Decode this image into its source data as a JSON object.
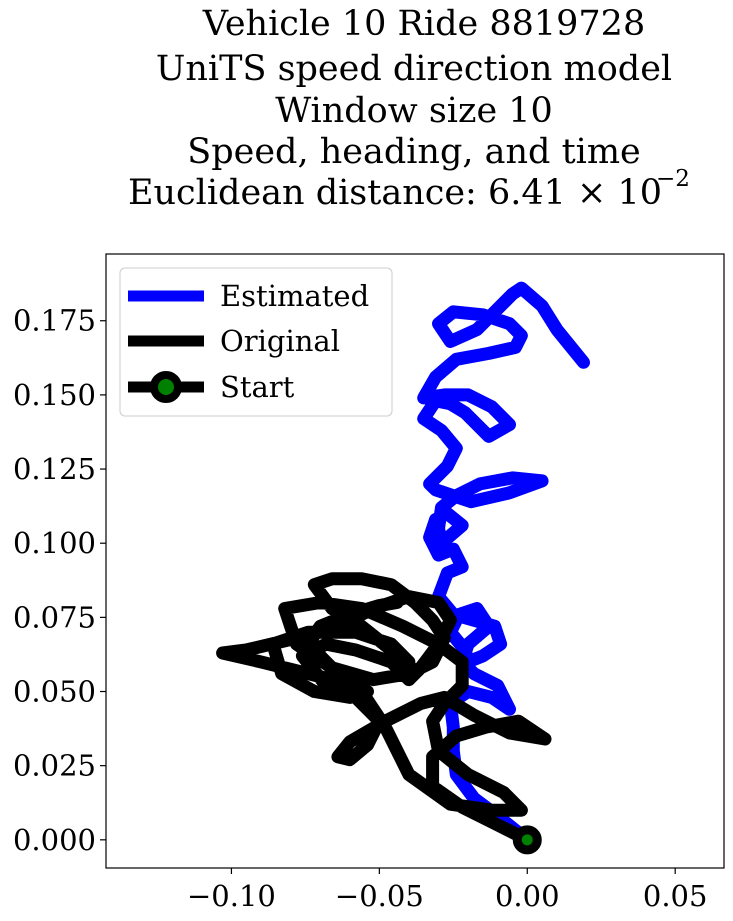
{
  "chart_data": {
    "type": "line",
    "title_lines": [
      "Vehicle 10 Ride 8819728",
      "UniTS speed direction model",
      "Window size 10",
      "Speed, heading, and time",
      "Euclidean distance: 6.41 × 10"
    ],
    "title_exponent": "−2",
    "xlim": [
      -0.1424,
      0.0665
    ],
    "ylim": [
      -0.0095,
      0.1975
    ],
    "x_ticks": [
      {
        "value": -0.1,
        "label": "−0.10"
      },
      {
        "value": -0.05,
        "label": "−0.05"
      },
      {
        "value": 0.0,
        "label": "0.00"
      },
      {
        "value": 0.05,
        "label": "0.05"
      }
    ],
    "y_ticks": [
      {
        "value": 0.0,
        "label": "0.000"
      },
      {
        "value": 0.025,
        "label": "0.025"
      },
      {
        "value": 0.05,
        "label": "0.050"
      },
      {
        "value": 0.075,
        "label": "0.075"
      },
      {
        "value": 0.1,
        "label": "0.100"
      },
      {
        "value": 0.125,
        "label": "0.125"
      },
      {
        "value": 0.15,
        "label": "0.150"
      },
      {
        "value": 0.175,
        "label": "0.175"
      }
    ],
    "legend_position": "top-left",
    "series": [
      {
        "name": "Estimated",
        "color": "#0000ff",
        "x": [
          0.0,
          -0.01,
          -0.018,
          -0.024,
          -0.025,
          -0.025,
          -0.026,
          -0.02,
          -0.012,
          -0.006,
          -0.01,
          -0.018,
          -0.022,
          -0.02,
          -0.013,
          -0.017,
          -0.023,
          -0.026,
          -0.021,
          -0.02,
          -0.015,
          -0.009,
          -0.011,
          -0.018,
          -0.025,
          -0.03,
          -0.027,
          -0.022,
          -0.025,
          -0.03,
          -0.033,
          -0.031,
          -0.027,
          -0.022,
          -0.029,
          -0.03,
          -0.029,
          -0.024,
          -0.016,
          -0.005,
          0.005,
          -0.006,
          -0.019,
          -0.031,
          -0.033,
          -0.027,
          -0.024,
          -0.029,
          -0.035,
          -0.031,
          -0.026,
          -0.021,
          -0.013,
          -0.006,
          -0.012,
          -0.02,
          -0.028,
          -0.035,
          -0.031,
          -0.024,
          -0.013,
          -0.004,
          -0.002,
          -0.006,
          -0.015,
          -0.025,
          -0.03,
          -0.026,
          -0.017,
          -0.011,
          -0.005,
          -0.002,
          0.005,
          0.01,
          0.019
        ],
        "y": [
          0.0,
          0.008,
          0.014,
          0.022,
          0.03,
          0.038,
          0.046,
          0.05,
          0.048,
          0.044,
          0.052,
          0.056,
          0.06,
          0.066,
          0.072,
          0.078,
          0.076,
          0.07,
          0.064,
          0.06,
          0.062,
          0.066,
          0.072,
          0.074,
          0.076,
          0.082,
          0.09,
          0.092,
          0.098,
          0.096,
          0.102,
          0.108,
          0.11,
          0.106,
          0.1,
          0.105,
          0.112,
          0.116,
          0.12,
          0.122,
          0.121,
          0.117,
          0.114,
          0.118,
          0.12,
          0.126,
          0.132,
          0.138,
          0.142,
          0.148,
          0.147,
          0.144,
          0.136,
          0.14,
          0.146,
          0.15,
          0.15,
          0.149,
          0.156,
          0.162,
          0.164,
          0.166,
          0.17,
          0.174,
          0.177,
          0.178,
          0.174,
          0.168,
          0.172,
          0.178,
          0.184,
          0.186,
          0.18,
          0.172,
          0.161
        ]
      },
      {
        "name": "Original",
        "color": "#000000",
        "x": [
          0.0,
          -0.012,
          -0.022,
          -0.032,
          -0.032,
          -0.024,
          -0.014,
          -0.003,
          0.006,
          -0.006,
          -0.018,
          -0.028,
          -0.036,
          -0.048,
          -0.06,
          -0.064,
          -0.06,
          -0.054,
          -0.05,
          -0.058,
          -0.068,
          -0.076,
          -0.068,
          -0.058,
          -0.046,
          -0.04,
          -0.036,
          -0.03,
          -0.026,
          -0.03,
          -0.04,
          -0.052,
          -0.064,
          -0.078,
          -0.095,
          -0.103,
          -0.09,
          -0.074,
          -0.062,
          -0.054,
          -0.06,
          -0.072,
          -0.083,
          -0.086,
          -0.074,
          -0.058,
          -0.046,
          -0.04,
          -0.046,
          -0.056,
          -0.066,
          -0.072,
          -0.066,
          -0.056,
          -0.046,
          -0.038,
          -0.032,
          -0.028,
          -0.032,
          -0.04,
          -0.052,
          -0.066,
          -0.078,
          -0.082,
          -0.07,
          -0.056,
          -0.042,
          -0.03,
          -0.022,
          -0.022,
          -0.028,
          -0.032,
          -0.03,
          -0.02,
          -0.008,
          -0.002,
          -0.012,
          -0.026,
          -0.04,
          -0.048,
          -0.056,
          -0.066,
          -0.074,
          -0.07,
          -0.06,
          -0.05,
          -0.044
        ],
        "y": [
          0.0,
          0.006,
          0.011,
          0.018,
          0.028,
          0.035,
          0.038,
          0.04,
          0.034,
          0.036,
          0.042,
          0.048,
          0.046,
          0.04,
          0.033,
          0.028,
          0.027,
          0.032,
          0.04,
          0.048,
          0.052,
          0.062,
          0.066,
          0.064,
          0.06,
          0.054,
          0.058,
          0.066,
          0.074,
          0.08,
          0.082,
          0.078,
          0.072,
          0.068,
          0.064,
          0.063,
          0.06,
          0.056,
          0.053,
          0.05,
          0.048,
          0.05,
          0.056,
          0.066,
          0.07,
          0.07,
          0.066,
          0.06,
          0.064,
          0.072,
          0.078,
          0.086,
          0.088,
          0.088,
          0.086,
          0.08,
          0.074,
          0.068,
          0.06,
          0.056,
          0.054,
          0.058,
          0.066,
          0.078,
          0.08,
          0.078,
          0.072,
          0.066,
          0.06,
          0.052,
          0.046,
          0.04,
          0.03,
          0.022,
          0.016,
          0.01,
          0.01,
          0.012,
          0.022,
          0.038,
          0.05,
          0.058,
          0.066,
          0.072,
          0.076,
          0.079,
          0.08
        ]
      }
    ],
    "legend": [
      {
        "label": "Estimated",
        "color": "#0000ff",
        "kind": "line"
      },
      {
        "label": "Original",
        "color": "#000000",
        "kind": "line"
      },
      {
        "label": "Start",
        "color": "#000000",
        "marker_color": "#008000",
        "kind": "marker"
      }
    ],
    "start_point": {
      "x": 0.0,
      "y": 0.0,
      "marker_color": "#008000",
      "edge_color": "#000000"
    }
  }
}
